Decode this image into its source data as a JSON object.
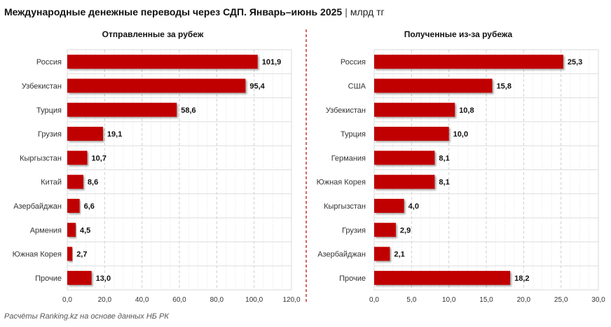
{
  "title": "Международные денежные переводы через СДП. Январь–июнь 2025",
  "title_separator": "|",
  "unit": "млрд тг",
  "source": "Расчёты Ranking.kz на основе данных НБ РК",
  "colors": {
    "bar": "#C00000",
    "grid": "#D9D9D9",
    "divider": "#C00000"
  },
  "chart_data": [
    {
      "type": "bar",
      "orientation": "horizontal",
      "title": "Отправленные за рубеж",
      "categories": [
        "Россия",
        "Узбекистан",
        "Турция",
        "Грузия",
        "Кыргызстан",
        "Китай",
        "Азербайджан",
        "Армения",
        "Южная Корея",
        "Прочие"
      ],
      "values": [
        101.9,
        95.4,
        58.6,
        19.1,
        10.7,
        8.6,
        6.6,
        4.5,
        2.7,
        13.0
      ],
      "value_labels": [
        "101,9",
        "95,4",
        "58,6",
        "19,1",
        "10,7",
        "8,6",
        "6,6",
        "4,5",
        "2,7",
        "13,0"
      ],
      "xlim": [
        0,
        120
      ],
      "ticks": [
        0,
        20,
        40,
        60,
        80,
        100,
        120
      ],
      "tick_labels": [
        "0,0",
        "20,0",
        "40,0",
        "60,0",
        "80,0",
        "100,0",
        "120,0"
      ],
      "grid": true
    },
    {
      "type": "bar",
      "orientation": "horizontal",
      "title": "Полученные из-за рубежа",
      "categories": [
        "Россия",
        "США",
        "Узбекистан",
        "Турция",
        "Германия",
        "Южная Корея",
        "Кыргызстан",
        "Грузия",
        "Азербайджан",
        "Прочие"
      ],
      "values": [
        25.3,
        15.8,
        10.8,
        10.0,
        8.1,
        8.1,
        4.0,
        2.9,
        2.1,
        18.2
      ],
      "value_labels": [
        "25,3",
        "15,8",
        "10,8",
        "10,0",
        "8,1",
        "8,1",
        "4,0",
        "2,9",
        "2,1",
        "18,2"
      ],
      "xlim": [
        0,
        30
      ],
      "ticks": [
        0,
        5,
        10,
        15,
        20,
        25,
        30
      ],
      "tick_labels": [
        "0,0",
        "5,0",
        "10,0",
        "15,0",
        "20,0",
        "25,0",
        "30,0"
      ],
      "grid": true
    }
  ]
}
